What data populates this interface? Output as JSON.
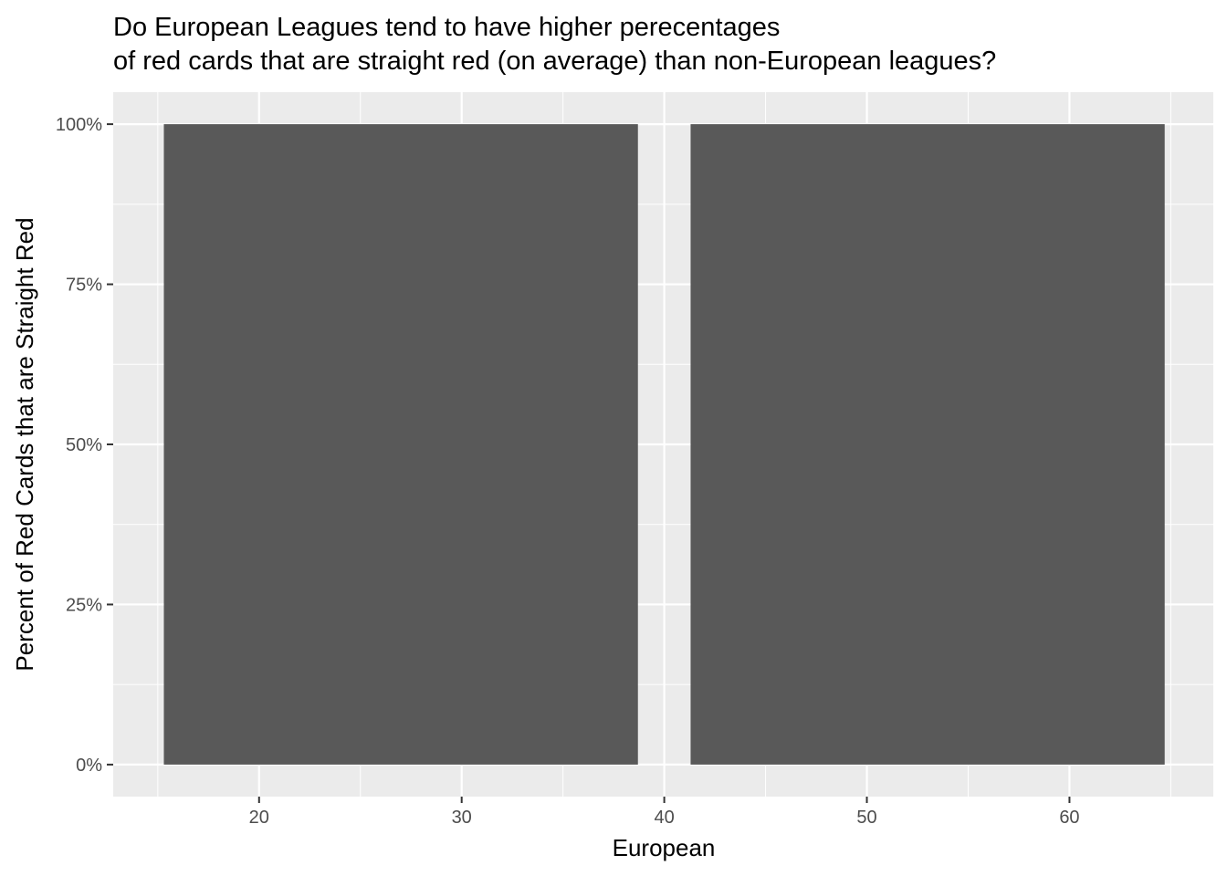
{
  "chart_data": {
    "type": "bar",
    "title_line1": "Do European Leagues tend to have higher perecentages",
    "title_line2": "of red cards that are straight red (on average) than non-European leagues?",
    "xlabel": "European",
    "ylabel": "Percent of Red Cards that are Straight Red",
    "x_ticks": [
      20,
      30,
      40,
      50,
      60
    ],
    "x_tick_labels": [
      "20",
      "30",
      "40",
      "50",
      "60"
    ],
    "y_ticks": [
      0,
      0.25,
      0.5,
      0.75,
      1.0
    ],
    "y_tick_labels": [
      "0%",
      "25%",
      "50%",
      "75%",
      "100%"
    ],
    "xlim": [
      12.8,
      67.1
    ],
    "ylim": [
      -0.05,
      1.05
    ],
    "bars": [
      {
        "xmin": 15.3,
        "xmax": 38.7,
        "value": 1.0
      },
      {
        "xmin": 41.3,
        "xmax": 64.7,
        "value": 1.0
      }
    ],
    "grid": true,
    "colors": {
      "panel": "#ebebeb",
      "grid": "#ffffff",
      "bar": "#595959",
      "tick": "#333333"
    }
  }
}
